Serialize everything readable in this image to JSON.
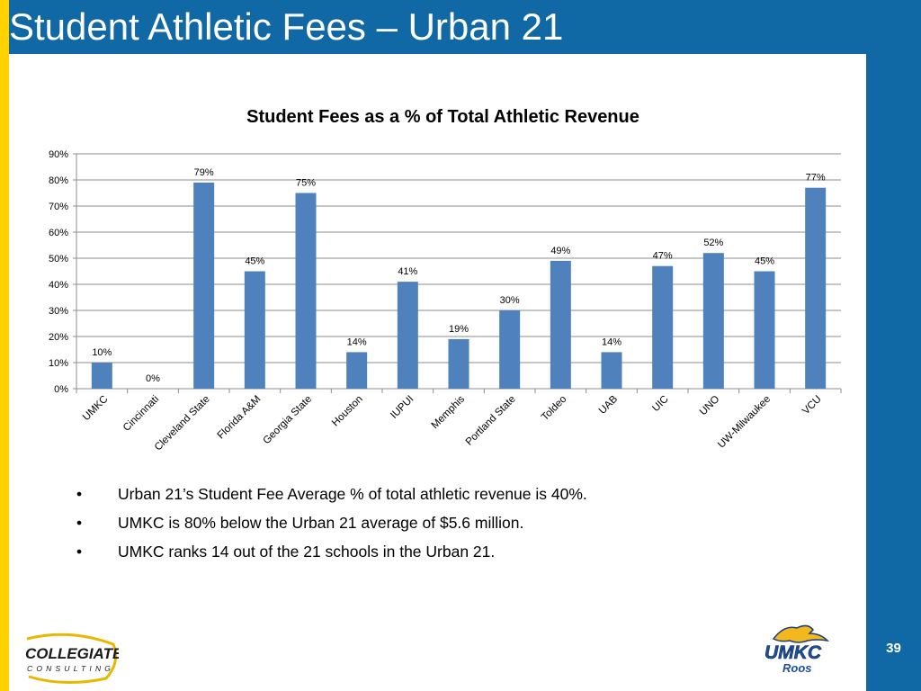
{
  "slide": {
    "title": "Student Athletic Fees – Urban 21",
    "page_number": "39",
    "bullets": [
      "Urban 21’s Student Fee Average % of total athletic revenue is 40%.",
      "UMKC is 80% below the Urban 21 average of $5.6 million.",
      "UMKC ranks 14 out of the 21 schools in the Urban 21."
    ],
    "bullet_glyph": "•",
    "logos": {
      "left": {
        "line1": "COLLEGIATE",
        "line2": "CONSULTING"
      },
      "right": {
        "line1": "UMKC",
        "line2": "Roos"
      }
    }
  },
  "colors": {
    "brand_blue": "#1068A5",
    "accent_yellow": "#FFD200",
    "bar": "#4F81BD"
  },
  "chart_data": {
    "type": "bar",
    "title": "Student Fees as a % of Total Athletic Revenue",
    "xlabel": "",
    "ylabel": "",
    "categories": [
      "UMKC",
      "Cincinnati",
      "Cleveland State",
      "Florida A&M",
      "Georgia State",
      "Houston",
      "IUPUI",
      "Memphis",
      "Portland State",
      "Toldeo",
      "UAB",
      "UIC",
      "UNO",
      "UW-Milwaukee",
      "VCU"
    ],
    "values": [
      10,
      0,
      79,
      45,
      75,
      14,
      41,
      19,
      30,
      49,
      14,
      47,
      52,
      45,
      77
    ],
    "data_labels": [
      "10%",
      "0%",
      "79%",
      "45%",
      "75%",
      "14%",
      "41%",
      "19%",
      "30%",
      "49%",
      "14%",
      "47%",
      "52%",
      "45%",
      "77%"
    ],
    "ylim": [
      0,
      90
    ],
    "yticks": [
      0,
      10,
      20,
      30,
      40,
      50,
      60,
      70,
      80,
      90
    ],
    "ytick_labels": [
      "0%",
      "10%",
      "20%",
      "30%",
      "40%",
      "50%",
      "60%",
      "70%",
      "80%",
      "90%"
    ],
    "grid": true,
    "legend": false
  }
}
